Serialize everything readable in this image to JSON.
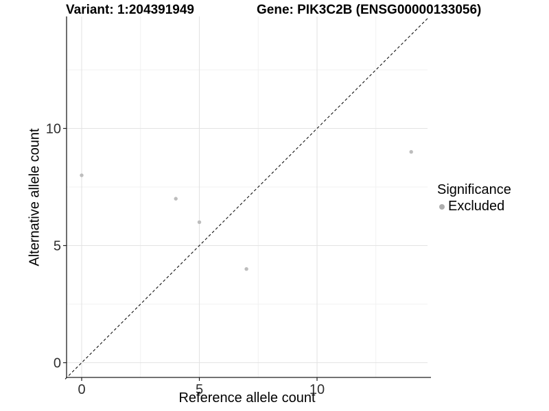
{
  "header": {
    "title_left": "Variant: 1:204391949",
    "title_right": "Gene: PIK3C2B (ENSG00000133056)"
  },
  "chart_data": {
    "type": "scatter",
    "xlabel": "Reference allele count",
    "ylabel": "Alternative allele count",
    "xlim": [
      -0.7,
      14.75
    ],
    "ylim": [
      -0.7,
      14.75
    ],
    "x_tick_values": [
      0,
      5,
      10
    ],
    "x_tick_labels": [
      "0",
      "5",
      "10"
    ],
    "y_tick_values": [
      0,
      5,
      10
    ],
    "y_tick_labels": [
      "0",
      "5",
      "10"
    ],
    "minor_tick_values": [
      2.5,
      7.5,
      12.5
    ],
    "grid": true,
    "grid_major_color": "#e3e3e3",
    "grid_minor_color": "#f0f0f0",
    "reference_line": {
      "type": "identity",
      "style": "dashed",
      "color": "#111111"
    },
    "series": [
      {
        "name": "Excluded",
        "color": "#bdbdbd",
        "points": [
          {
            "x": 0,
            "y": 8
          },
          {
            "x": 4,
            "y": 7
          },
          {
            "x": 5,
            "y": 6
          },
          {
            "x": 7,
            "y": 4
          },
          {
            "x": 14,
            "y": 9
          }
        ]
      }
    ],
    "legend": {
      "title": "Significance",
      "position": "right",
      "entries": [
        {
          "label": "Excluded",
          "color": "#adadad"
        }
      ]
    }
  }
}
